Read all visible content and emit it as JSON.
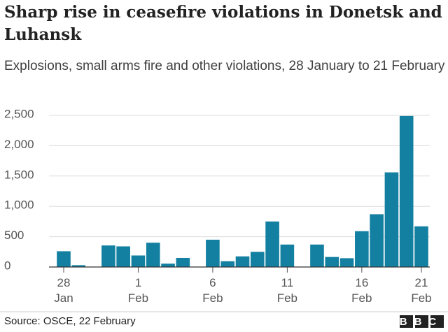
{
  "chart_data": {
    "type": "bar",
    "title": "Sharp rise in ceasefire violations in Donetsk and Luhansk",
    "subtitle": "Explosions, small arms fire and other violations, 28 January to 21 February",
    "categories": [
      [
        "28",
        "Jan"
      ],
      null,
      null,
      null,
      null,
      [
        "1",
        "Feb"
      ],
      null,
      null,
      null,
      null,
      [
        "6",
        "Feb"
      ],
      null,
      null,
      null,
      null,
      [
        "11",
        "Feb"
      ],
      null,
      null,
      null,
      null,
      [
        "16",
        "Feb"
      ],
      null,
      null,
      null,
      [
        "21",
        "Feb"
      ]
    ],
    "values": [
      260,
      30,
      null,
      355,
      340,
      190,
      400,
      55,
      150,
      null,
      450,
      95,
      175,
      250,
      750,
      370,
      null,
      370,
      165,
      145,
      590,
      870,
      1560,
      2490,
      670
    ],
    "color": "#1380a1",
    "ylim": [
      0,
      2500
    ],
    "yticks": [
      0,
      500,
      {
        "value": 1000,
        "label": "1,000"
      },
      {
        "value": 1500,
        "label": "1,500"
      },
      {
        "value": 2000,
        "label": "2,000"
      },
      {
        "value": 2500,
        "label": "2,500"
      }
    ],
    "grid": true,
    "source": "Source: OSCE, 22 February",
    "logo": "BBC"
  }
}
